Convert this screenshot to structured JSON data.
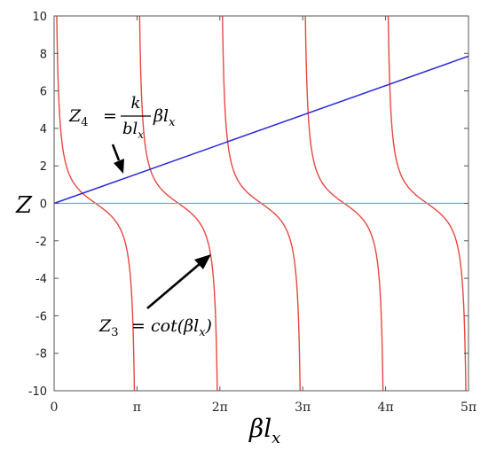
{
  "chart_data": {
    "type": "line",
    "xlabel": "βl",
    "xlabel_sub": "x",
    "ylabel": "Z",
    "xlim": [
      0,
      15.708
    ],
    "ylim": [
      -10,
      10
    ],
    "grid": false,
    "y_ticks": [
      -10,
      -8,
      -6,
      -4,
      -2,
      0,
      2,
      4,
      6,
      8,
      10
    ],
    "y_tick_labels": [
      "-10",
      "-8",
      "-6",
      "-4",
      "-2",
      "0",
      "2",
      "4",
      "6",
      "8",
      "10"
    ],
    "x_ticks": [
      0,
      3.1416,
      6.2832,
      9.4248,
      12.5664,
      15.708
    ],
    "x_tick_labels": [
      "0",
      "π",
      "2π",
      "3π",
      "4π",
      "5π"
    ],
    "series": [
      {
        "function": "cot(x)",
        "color": "#e8473f",
        "asymptotes": [
          0,
          3.1416,
          6.2832,
          9.4248,
          12.5664,
          15.708
        ]
      },
      {
        "function": "0.5*x",
        "color": "#2a2ad6",
        "x": [
          0,
          15.708
        ],
        "y": [
          0,
          7.854
        ]
      },
      {
        "function": "0",
        "color": "#5aaee8",
        "x": [
          0,
          15.708
        ],
        "y": [
          0,
          0
        ]
      }
    ],
    "annotations": [
      {
        "label": "Z4 = k / bl_x · βl_x",
        "target_series": "0.5*x",
        "arrow_to": [
          2.4,
          1.7
        ]
      },
      {
        "label": "Z3 = cot(βl_x)",
        "target_series": "cot(x)",
        "arrow_to": [
          5.35,
          -2.6
        ]
      }
    ]
  },
  "annotation_text": {
    "z4": {
      "lhs_main": "Z",
      "lhs_sub": "4",
      "eq": " = ",
      "num": "k",
      "den_main": "bl",
      "den_sub": "x",
      "tail_main": "βl",
      "tail_sub": "x"
    },
    "z3": {
      "lhs_main": "Z",
      "lhs_sub": "3",
      "eq": " = ",
      "func": "cot(βl",
      "func_sub": "x",
      "close": ")"
    }
  }
}
